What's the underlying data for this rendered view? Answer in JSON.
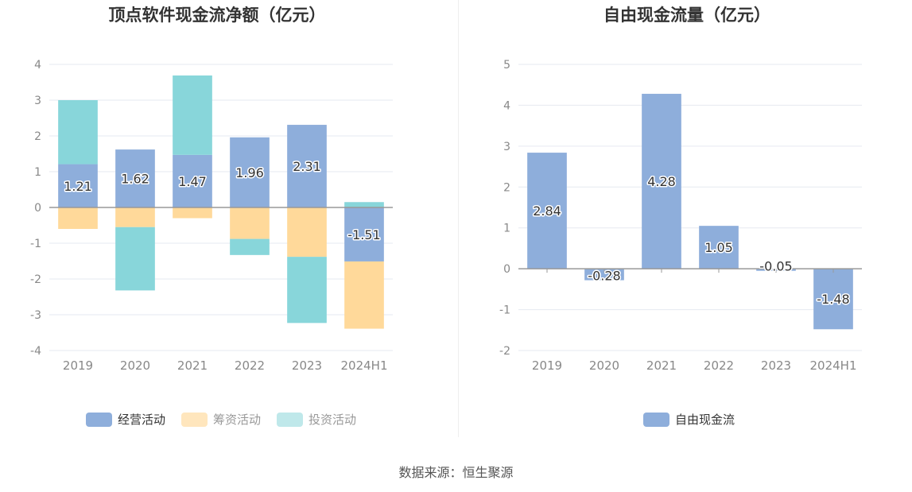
{
  "source_text": "数据来源：恒生聚源",
  "chart_data": [
    {
      "type": "bar",
      "stacked": true,
      "title": "顶点软件现金流净额（亿元）",
      "categories": [
        "2019",
        "2020",
        "2021",
        "2022",
        "2023",
        "2024H1"
      ],
      "ylim": [
        -4,
        4
      ],
      "yticks": [
        4,
        3,
        2,
        1,
        0,
        -1,
        -2,
        -3,
        -4
      ],
      "grid": true,
      "legend_position": "bottom",
      "series": [
        {
          "name": "经营活动",
          "color": "#8eaedb",
          "values": [
            1.21,
            1.62,
            1.47,
            1.96,
            2.31,
            -1.51
          ],
          "labels": [
            "1.21",
            "1.62",
            "1.47",
            "1.96",
            "2.31",
            "-1.51"
          ]
        },
        {
          "name": "筹资活动",
          "color": "#ffd99a",
          "values": [
            -0.6,
            -0.55,
            -0.3,
            -0.88,
            -1.38,
            -1.88
          ]
        },
        {
          "name": "投资活动",
          "color": "#88d6da",
          "values": [
            1.79,
            -1.77,
            2.22,
            -0.45,
            -1.85,
            0.15
          ]
        }
      ]
    },
    {
      "type": "bar",
      "title": "自由现金流量（亿元）",
      "categories": [
        "2019",
        "2020",
        "2021",
        "2022",
        "2023",
        "2024H1"
      ],
      "ylim": [
        -2,
        5
      ],
      "yticks": [
        5,
        4,
        3,
        2,
        1,
        0,
        -1,
        -2
      ],
      "grid": true,
      "legend_position": "bottom",
      "series": [
        {
          "name": "自由现金流",
          "color": "#8eaedb",
          "values": [
            2.84,
            -0.28,
            4.28,
            1.05,
            -0.05,
            -1.48
          ],
          "labels": [
            "2.84",
            "-0.28",
            "4.28",
            "1.05",
            "-0.05",
            "-1.48"
          ]
        }
      ]
    }
  ]
}
